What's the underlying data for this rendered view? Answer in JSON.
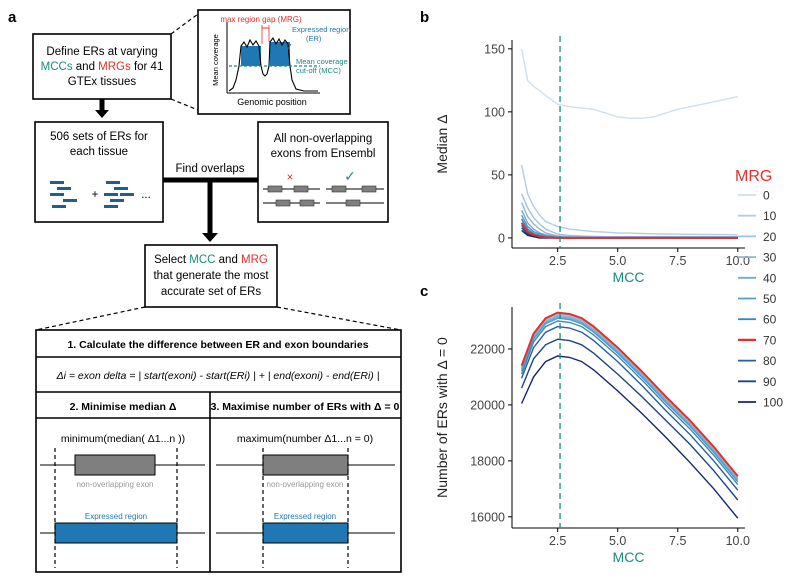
{
  "panel_a": {
    "letter": "a",
    "define_box": {
      "line1": "Define ERs at varying",
      "mcc_word": "MCCs",
      "and_word": " and ",
      "mrg_word": "MRGs",
      "line2_tail": " for 41",
      "line3": "GTEx tissues"
    },
    "inset": {
      "mrg_label": "max region gap (MRG)",
      "er_label_1": "Expressed region",
      "er_label_2": "(ER)",
      "mcc_label_1": "Mean coverage",
      "mcc_label_2": "cut-off (MCC)",
      "y_axis": "Mean coverage",
      "x_axis": "Genomic position"
    },
    "sets_box": {
      "line1": "506 sets of ERs for",
      "line2": "each tissue",
      "plus": "+",
      "ellipsis": "..."
    },
    "exons_box": {
      "line1": "All non-overlapping",
      "line2": "exons from Ensembl",
      "cross": "×",
      "check": "✓"
    },
    "find_overlaps": "Find overlaps",
    "select_box": {
      "select_word": "Select ",
      "mcc_word": "MCC",
      "and_word": " and ",
      "mrg_word": "MRG",
      "line2": "that generate the most",
      "line3": "accurate set of ERs"
    },
    "step1": {
      "title": "1. Calculate the difference between ER and exon boundaries",
      "formula": "Δi = exon delta = | start(exoni) - start(ERi) | + | end(exoni) - end(ERi) |"
    },
    "step2": {
      "title": "2. Minimise median Δ",
      "expr": "minimum(median( Δ1...n ))"
    },
    "step3": {
      "title": "3. Maximise number of ERs with Δ = 0",
      "expr": "maximum(number Δ1...n = 0)"
    },
    "exon_label": "non-overlapping exon",
    "er_label": "Expressed region"
  },
  "legend": {
    "title": "MRG",
    "items": [
      {
        "label": "0",
        "color": "#cfdfee"
      },
      {
        "label": "10",
        "color": "#b3cde3"
      },
      {
        "label": "20",
        "color": "#a1c2dc"
      },
      {
        "label": "30",
        "color": "#8cb6d6"
      },
      {
        "label": "40",
        "color": "#74a9cf"
      },
      {
        "label": "50",
        "color": "#549bc6"
      },
      {
        "label": "60",
        "color": "#3a89bb"
      },
      {
        "label": "70",
        "color": "#e0302f"
      },
      {
        "label": "80",
        "color": "#245f9e"
      },
      {
        "label": "90",
        "color": "#1c4685"
      },
      {
        "label": "100",
        "color": "#16266e"
      }
    ]
  },
  "chart_data": [
    {
      "panel": "b",
      "type": "line",
      "xlabel": "MCC",
      "ylabel": "Median Δ",
      "xlim": [
        0.6,
        10.3
      ],
      "ylim": [
        -8,
        157
      ],
      "xticks": [
        2.5,
        5.0,
        7.5,
        10.0
      ],
      "xtick_labels": [
        "2.5",
        "5.0",
        "7.5",
        "10.0"
      ],
      "yticks": [
        0,
        50,
        100,
        150
      ],
      "ytick_labels": [
        "0",
        "50",
        "100",
        "150"
      ],
      "vline_x": 2.6,
      "vline_color": "#1a8a80",
      "x": [
        1.0,
        1.25,
        1.5,
        1.75,
        2.0,
        2.5,
        3.0,
        3.5,
        4.0,
        4.5,
        5.0,
        5.5,
        6.0,
        6.5,
        7.0,
        7.5,
        8.0,
        8.5,
        9.0,
        9.5,
        10.0
      ],
      "series": [
        {
          "name": "0",
          "values": [
            150,
            125,
            120,
            117,
            113,
            106,
            104,
            103,
            102,
            99,
            96,
            95,
            95,
            96,
            99,
            102,
            104,
            106,
            108,
            110,
            112
          ]
        },
        {
          "name": "10",
          "values": [
            58,
            35,
            25,
            18,
            13,
            9,
            7,
            6,
            5,
            4.5,
            4,
            3.8,
            3.5,
            3.3,
            3.1,
            3,
            2.9,
            2.8,
            2.7,
            2.6,
            2.5
          ]
        },
        {
          "name": "20",
          "values": [
            35,
            24,
            16,
            11,
            7,
            3,
            2,
            1.5,
            1.2,
            1,
            1,
            1,
            1,
            1,
            1,
            1,
            1,
            1,
            1,
            1,
            1
          ]
        },
        {
          "name": "30",
          "values": [
            28,
            17,
            11,
            7,
            4,
            1.5,
            1,
            1,
            1,
            1,
            1,
            1,
            1,
            1,
            1,
            1,
            1,
            1,
            1,
            1,
            1
          ]
        },
        {
          "name": "40",
          "values": [
            22,
            12,
            7,
            4,
            2.5,
            1,
            0.5,
            0.5,
            0.5,
            0.5,
            0.5,
            0.5,
            0.5,
            0.5,
            0.5,
            0.5,
            0.5,
            0.5,
            0.5,
            0.5,
            0.5
          ]
        },
        {
          "name": "50",
          "values": [
            18,
            9,
            5,
            3,
            1.5,
            0.5,
            0,
            0,
            0,
            0,
            0,
            0,
            0,
            0,
            0,
            0,
            0,
            0,
            0,
            0,
            0
          ]
        },
        {
          "name": "60",
          "values": [
            15,
            7,
            3.5,
            2,
            1,
            0,
            0,
            0,
            0,
            0,
            0,
            0,
            0,
            0,
            0,
            0,
            0,
            0,
            0,
            0,
            0
          ]
        },
        {
          "name": "70",
          "values": [
            12,
            5,
            2.5,
            1,
            0.5,
            0,
            0,
            0,
            0,
            0,
            0,
            0,
            0,
            0,
            0,
            0,
            0,
            0,
            0,
            0,
            0
          ]
        },
        {
          "name": "80",
          "values": [
            10,
            4,
            2,
            0.5,
            0,
            0,
            0,
            0,
            0,
            0,
            0,
            0,
            0,
            0,
            0,
            0,
            0,
            0,
            0,
            0,
            0
          ]
        },
        {
          "name": "90",
          "values": [
            8,
            3,
            1.5,
            0,
            0,
            0,
            0,
            0,
            0,
            0,
            0,
            0,
            0,
            0,
            0,
            0,
            0,
            0,
            0,
            0,
            0
          ]
        },
        {
          "name": "100",
          "values": [
            6,
            2,
            1,
            0,
            0,
            0,
            0,
            0,
            0,
            0,
            0,
            0,
            0,
            0,
            0,
            0,
            0,
            0,
            0,
            0,
            0
          ]
        }
      ]
    },
    {
      "panel": "c",
      "type": "line",
      "xlabel": "MCC",
      "ylabel": "Number of ERs with  Δ = 0",
      "xlim": [
        0.6,
        10.3
      ],
      "ylim": [
        15600,
        23500
      ],
      "xticks": [
        2.5,
        5.0,
        7.5,
        10.0
      ],
      "xtick_labels": [
        "2.5",
        "5.0",
        "7.5",
        "10.0"
      ],
      "yticks": [
        16000,
        18000,
        20000,
        22000
      ],
      "ytick_labels": [
        "16000",
        "18000",
        "20000",
        "22000"
      ],
      "vline_x": 2.6,
      "vline_color": "#1a8a80",
      "x": [
        1.0,
        1.5,
        2.0,
        2.5,
        3.0,
        3.5,
        4.0,
        5.0,
        6.0,
        7.0,
        8.0,
        9.0,
        10.0
      ],
      "series": [
        {
          "name": "0",
          "values": [
            21300,
            22450,
            23000,
            23200,
            23150,
            23000,
            22700,
            21950,
            21100,
            20200,
            19350,
            18400,
            17350
          ]
        },
        {
          "name": "10",
          "values": [
            21350,
            22500,
            23050,
            23250,
            23200,
            23050,
            22750,
            22000,
            21150,
            20250,
            19400,
            18450,
            17400
          ]
        },
        {
          "name": "20",
          "values": [
            21350,
            22500,
            23050,
            23250,
            23200,
            23050,
            22750,
            22000,
            21150,
            20250,
            19400,
            18450,
            17400
          ]
        },
        {
          "name": "30",
          "values": [
            21300,
            22450,
            23000,
            23200,
            23150,
            23000,
            22700,
            21950,
            21100,
            20200,
            19350,
            18400,
            17350
          ]
        },
        {
          "name": "40",
          "values": [
            21250,
            22400,
            22950,
            23150,
            23100,
            22950,
            22650,
            21900,
            21050,
            20150,
            19300,
            18350,
            17300
          ]
        },
        {
          "name": "50",
          "values": [
            21200,
            22350,
            22900,
            23100,
            23050,
            22900,
            22600,
            21850,
            21000,
            20100,
            19250,
            18300,
            17250
          ]
        },
        {
          "name": "60",
          "values": [
            21100,
            22250,
            22800,
            23000,
            22950,
            22800,
            22500,
            21750,
            20900,
            20000,
            19150,
            18200,
            17150
          ]
        },
        {
          "name": "70",
          "values": [
            21400,
            22550,
            23100,
            23300,
            23250,
            23100,
            22800,
            22050,
            21200,
            20300,
            19450,
            18500,
            17450
          ]
        },
        {
          "name": "80",
          "values": [
            20950,
            22050,
            22600,
            22800,
            22750,
            22600,
            22300,
            21550,
            20700,
            19800,
            18950,
            18000,
            16950
          ]
        },
        {
          "name": "90",
          "values": [
            20600,
            21650,
            22150,
            22350,
            22300,
            22150,
            21850,
            21100,
            20300,
            19450,
            18600,
            17650,
            16600
          ]
        },
        {
          "name": "100",
          "values": [
            20050,
            21000,
            21550,
            21750,
            21700,
            21550,
            21250,
            20500,
            19700,
            18850,
            17950,
            17000,
            15950
          ]
        }
      ]
    }
  ]
}
